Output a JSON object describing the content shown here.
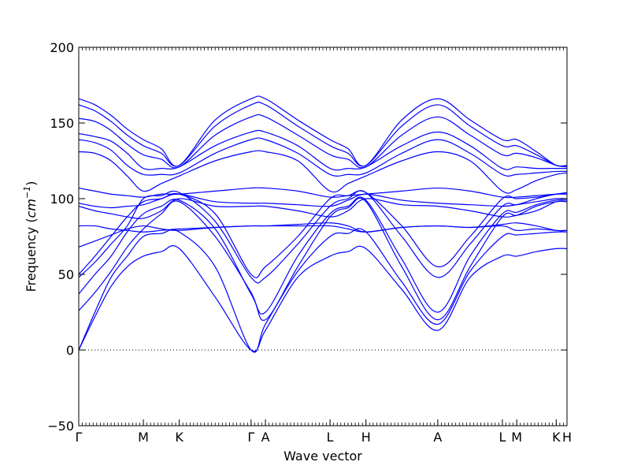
{
  "chart_data": {
    "type": "line",
    "xlabel": "Wave vector",
    "ylabel": "Frequency (",
    "ylabel_unit_base": "cm",
    "ylabel_unit_exp": "−1",
    "ylabel_close": ")",
    "ylim": [
      -50,
      200
    ],
    "yticks": [
      -50,
      0,
      50,
      100,
      150,
      200
    ],
    "ytick_labels": [
      "−50",
      "0",
      "50",
      "100",
      "150",
      "200"
    ],
    "xlim": [
      0,
      13.6
    ],
    "high_symmetry_points": [
      {
        "label": "Γ",
        "x": 0
      },
      {
        "label": "M",
        "x": 1.8
      },
      {
        "label": "K",
        "x": 2.8
      },
      {
        "label": "Γ",
        "x": 4.8
      },
      {
        "label": "A",
        "x": 5.2
      },
      {
        "label": "L",
        "x": 7.0
      },
      {
        "label": "H",
        "x": 8.0
      },
      {
        "label": "A",
        "x": 10.0
      },
      {
        "label": "L",
        "x": 11.8
      },
      {
        "label": "M",
        "x": 12.2
      },
      {
        "label": "K",
        "x": 13.3
      },
      {
        "label": "H",
        "x": 13.6
      }
    ],
    "zero_line": true,
    "line_color": "#0000ff",
    "series": [
      {
        "x": [
          0,
          0.45,
          0.9,
          1.35,
          1.8,
          2.3,
          2.8,
          3.8,
          4.8,
          5.2,
          6.1,
          7.0,
          7.5,
          8.0,
          9.0,
          10.0,
          10.9,
          11.8,
          12.2,
          12.75,
          13.3,
          13.6
        ],
        "values": [
          0,
          22,
          42,
          55,
          62,
          65,
          67,
          35,
          0,
          13,
          48,
          62,
          65,
          67,
          40,
          13,
          48,
          62,
          62,
          65,
          67,
          67
        ]
      },
      {
        "x": [
          0,
          0.45,
          0.9,
          1.35,
          1.8,
          2.3,
          2.8,
          3.8,
          4.8,
          5.2,
          6.1,
          7.0,
          7.5,
          8.0,
          9.0,
          10.0,
          10.9,
          11.8,
          12.2,
          12.75,
          13.3,
          13.6
        ],
        "values": [
          0,
          25,
          48,
          62,
          75,
          77,
          78,
          55,
          0,
          17,
          52,
          75,
          77,
          78,
          45,
          17,
          52,
          75,
          76,
          77,
          78,
          78
        ]
      },
      {
        "x": [
          0,
          0.45,
          0.9,
          1.35,
          1.8,
          2.3,
          2.8,
          3.8,
          4.8,
          5.2,
          6.1,
          7.0,
          7.5,
          8.0,
          9.0,
          10.0,
          10.9,
          11.8,
          12.2,
          12.75,
          13.3,
          13.6
        ],
        "values": [
          26,
          38,
          52,
          68,
          80,
          90,
          98,
          75,
          38,
          20,
          55,
          88,
          94,
          98,
          55,
          20,
          55,
          88,
          89,
          95,
          98,
          98
        ]
      },
      {
        "x": [
          0,
          0.45,
          0.9,
          1.35,
          1.8,
          2.3,
          2.8,
          3.8,
          4.8,
          5.2,
          6.1,
          7.0,
          7.5,
          8.0,
          9.0,
          10.0,
          10.9,
          11.8,
          12.2,
          12.75,
          13.3,
          13.6
        ],
        "values": [
          37,
          50,
          62,
          78,
          90,
          95,
          99,
          80,
          37,
          25,
          62,
          90,
          95,
          99,
          60,
          25,
          62,
          90,
          91,
          96,
          99,
          99
        ]
      },
      {
        "x": [
          0,
          0.45,
          0.9,
          1.35,
          1.8,
          2.3,
          2.8,
          3.8,
          4.8,
          5.2,
          6.1,
          7.0,
          7.5,
          8.0,
          9.0,
          10.0,
          10.9,
          11.8,
          12.2,
          12.75,
          13.3,
          13.6
        ],
        "values": [
          48,
          58,
          70,
          82,
          100,
          102,
          104,
          85,
          48,
          48,
          70,
          95,
          100,
          104,
          75,
          48,
          70,
          95,
          96,
          100,
          103,
          103
        ]
      },
      {
        "x": [
          0,
          0.45,
          0.9,
          1.35,
          1.8,
          2.3,
          2.8,
          3.8,
          4.8,
          5.2,
          6.1,
          7.0,
          7.5,
          8.0,
          9.0,
          10.0,
          10.9,
          11.8,
          12.2,
          12.75,
          13.3,
          13.6
        ],
        "values": [
          50,
          62,
          75,
          88,
          98,
          100,
          103,
          90,
          50,
          55,
          75,
          100,
          102,
          104,
          82,
          55,
          75,
          100,
          100,
          101,
          103,
          104
        ]
      },
      {
        "x": [
          0,
          0.45,
          0.9,
          1.35,
          1.8,
          2.3,
          2.8,
          3.8,
          4.8,
          5.2,
          6.1,
          7.0,
          7.5,
          8.0,
          9.0,
          10.0,
          10.9,
          11.8,
          12.2,
          12.75,
          13.3,
          13.6
        ],
        "values": [
          68,
          72,
          76,
          80,
          82,
          80,
          79,
          81,
          82,
          82,
          82,
          82,
          80,
          78,
          81,
          82,
          81,
          82,
          79,
          80,
          79,
          79
        ]
      },
      {
        "x": [
          0,
          0.45,
          0.9,
          1.35,
          1.8,
          2.3,
          2.8,
          3.8,
          4.8,
          5.2,
          6.1,
          7.0,
          7.5,
          8.0,
          9.0,
          10.0,
          10.9,
          11.8,
          12.2,
          12.75,
          13.3,
          13.6
        ],
        "values": [
          82,
          82,
          80,
          79,
          78,
          79,
          80,
          81,
          82,
          82,
          83,
          84,
          82,
          78,
          81,
          82,
          81,
          83,
          84,
          82,
          79,
          79
        ]
      },
      {
        "x": [
          0,
          0.45,
          0.9,
          1.35,
          1.8,
          2.3,
          2.8,
          3.8,
          4.8,
          5.2,
          6.1,
          7.0,
          7.5,
          8.0,
          9.0,
          10.0,
          10.9,
          11.8,
          12.2,
          12.75,
          13.3,
          13.6
        ],
        "values": [
          95,
          92,
          90,
          88,
          87,
          92,
          100,
          95,
          95,
          95,
          92,
          88,
          92,
          100,
          96,
          95,
          92,
          88,
          89,
          92,
          98,
          98
        ]
      },
      {
        "x": [
          0,
          0.45,
          0.9,
          1.35,
          1.8,
          2.3,
          2.8,
          3.8,
          4.8,
          5.2,
          6.1,
          7.0,
          7.5,
          8.0,
          9.0,
          10.0,
          10.9,
          11.8,
          12.2,
          12.75,
          13.3,
          13.6
        ],
        "values": [
          97,
          95,
          94,
          95,
          96,
          100,
          103,
          98,
          97,
          97,
          96,
          95,
          99,
          103,
          99,
          97,
          96,
          95,
          96,
          98,
          100,
          100
        ]
      },
      {
        "x": [
          0,
          0.45,
          0.9,
          1.35,
          1.8,
          2.3,
          2.8,
          3.8,
          4.8,
          5.2,
          6.1,
          7.0,
          7.5,
          8.0,
          9.0,
          10.0,
          10.9,
          11.8,
          12.2,
          12.75,
          13.3,
          13.6
        ],
        "values": [
          107,
          105,
          103,
          102,
          101,
          103,
          103,
          105,
          107,
          107,
          105,
          101,
          102,
          103,
          105,
          107,
          105,
          101,
          101,
          102,
          103,
          103
        ]
      },
      {
        "x": [
          0,
          0.45,
          0.9,
          1.35,
          1.8,
          2.3,
          2.8,
          3.8,
          4.8,
          5.2,
          6.1,
          7.0,
          7.5,
          8.0,
          9.0,
          10.0,
          10.9,
          11.8,
          12.2,
          12.75,
          13.3,
          13.6
        ],
        "values": [
          131,
          130,
          125,
          115,
          105,
          110,
          115,
          125,
          131,
          131,
          125,
          105,
          110,
          115,
          125,
          131,
          125,
          105,
          106,
          112,
          116,
          117
        ]
      },
      {
        "x": [
          0,
          0.45,
          0.9,
          1.35,
          1.8,
          2.3,
          2.8,
          3.8,
          4.8,
          5.2,
          6.1,
          7.0,
          7.5,
          8.0,
          9.0,
          10.0,
          10.9,
          11.8,
          12.2,
          12.75,
          13.3,
          13.6
        ],
        "values": [
          139,
          137,
          132,
          122,
          116,
          116,
          117,
          130,
          139,
          139,
          130,
          116,
          116,
          117,
          130,
          139,
          130,
          116,
          116,
          117,
          118,
          118
        ]
      },
      {
        "x": [
          0,
          0.45,
          0.9,
          1.35,
          1.8,
          2.3,
          2.8,
          3.8,
          4.8,
          5.2,
          6.1,
          7.0,
          7.5,
          8.0,
          9.0,
          10.0,
          10.9,
          11.8,
          12.2,
          12.75,
          13.3,
          13.6
        ],
        "values": [
          143,
          141,
          138,
          130,
          120,
          120,
          121,
          135,
          144,
          144,
          135,
          120,
          120,
          121,
          135,
          144,
          135,
          120,
          121,
          120,
          120,
          120
        ]
      },
      {
        "x": [
          0,
          0.45,
          0.9,
          1.35,
          1.8,
          2.3,
          2.8,
          3.8,
          4.8,
          5.2,
          6.1,
          7.0,
          7.5,
          8.0,
          9.0,
          10.0,
          10.9,
          11.8,
          12.2,
          12.75,
          13.3,
          13.6
        ],
        "values": [
          153,
          151,
          145,
          136,
          129,
          126,
          121,
          142,
          154,
          154,
          142,
          129,
          126,
          121,
          142,
          154,
          142,
          129,
          130,
          127,
          122,
          121
        ]
      },
      {
        "x": [
          0,
          0.45,
          0.9,
          1.35,
          1.8,
          2.3,
          2.8,
          3.8,
          4.8,
          5.2,
          6.1,
          7.0,
          7.5,
          8.0,
          9.0,
          10.0,
          10.9,
          11.8,
          12.2,
          12.75,
          13.3,
          13.6
        ],
        "values": [
          162,
          158,
          151,
          142,
          135,
          130,
          122,
          148,
          162,
          162,
          148,
          135,
          130,
          122,
          148,
          162,
          148,
          135,
          135,
          129,
          122,
          122
        ]
      },
      {
        "x": [
          0,
          0.45,
          0.9,
          1.35,
          1.8,
          2.3,
          2.8,
          3.8,
          4.8,
          5.2,
          6.1,
          7.0,
          7.5,
          8.0,
          9.0,
          10.0,
          10.9,
          11.8,
          12.2,
          12.75,
          13.3,
          13.6
        ],
        "values": [
          166,
          162,
          155,
          146,
          139,
          133,
          122,
          152,
          166,
          166,
          152,
          139,
          133,
          122,
          152,
          166,
          152,
          139,
          139,
          131,
          122,
          122
        ]
      }
    ]
  }
}
